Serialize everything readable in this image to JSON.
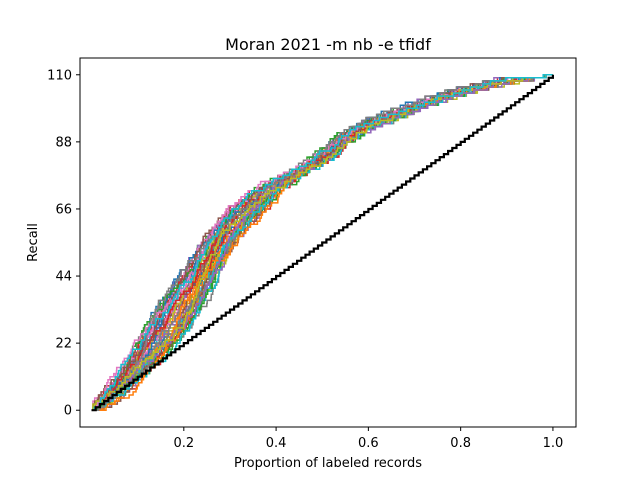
{
  "chart_data": {
    "type": "line",
    "title": "Moran 2021 -m nb -e tfidf",
    "xlabel": "Proportion of labeled records",
    "ylabel": "Recall",
    "xlim": [
      -0.025,
      1.05
    ],
    "ylim": [
      -5.5,
      115.5
    ],
    "xticks": [
      0.2,
      0.4,
      0.6,
      0.8,
      1.0
    ],
    "xtick_labels": [
      "0.2",
      "0.4",
      "0.6",
      "0.8",
      "1.0"
    ],
    "yticks": [
      0,
      22,
      44,
      66,
      88,
      110
    ],
    "ytick_labels": [
      "0",
      "22",
      "44",
      "66",
      "88",
      "110"
    ],
    "grid": false,
    "legend": "none",
    "total_relevant": 110,
    "series_count": 60,
    "series_colors": [
      "#1f77b4",
      "#ff7f0e",
      "#2ca02c",
      "#d62728",
      "#9467bd",
      "#8c564b",
      "#e377c2",
      "#7f7f7f",
      "#bcbd22",
      "#17becf"
    ],
    "recall_band_lower": {
      "x": [
        0.0,
        0.05,
        0.1,
        0.15,
        0.2,
        0.25,
        0.3,
        0.35,
        0.4,
        0.45,
        0.5,
        0.55,
        0.6,
        0.7,
        0.8,
        0.88,
        0.95,
        1.0
      ],
      "y": [
        0,
        3,
        10,
        17,
        27,
        40,
        53,
        63,
        72,
        78,
        82,
        89,
        93,
        99,
        104,
        107,
        109,
        110
      ]
    },
    "recall_band_upper": {
      "x": [
        0.0,
        0.05,
        0.1,
        0.15,
        0.2,
        0.25,
        0.3,
        0.35,
        0.4,
        0.45,
        0.5,
        0.55,
        0.6,
        0.7,
        0.8,
        0.88,
        0.95,
        1.0
      ],
      "y": [
        0,
        10,
        20,
        33,
        45,
        58,
        67,
        72,
        76,
        79,
        84,
        91,
        95,
        101,
        106,
        109,
        110,
        110
      ]
    },
    "random_baseline": {
      "color": "#000000",
      "x": [
        0.0,
        1.0
      ],
      "y": [
        0,
        110
      ]
    }
  }
}
